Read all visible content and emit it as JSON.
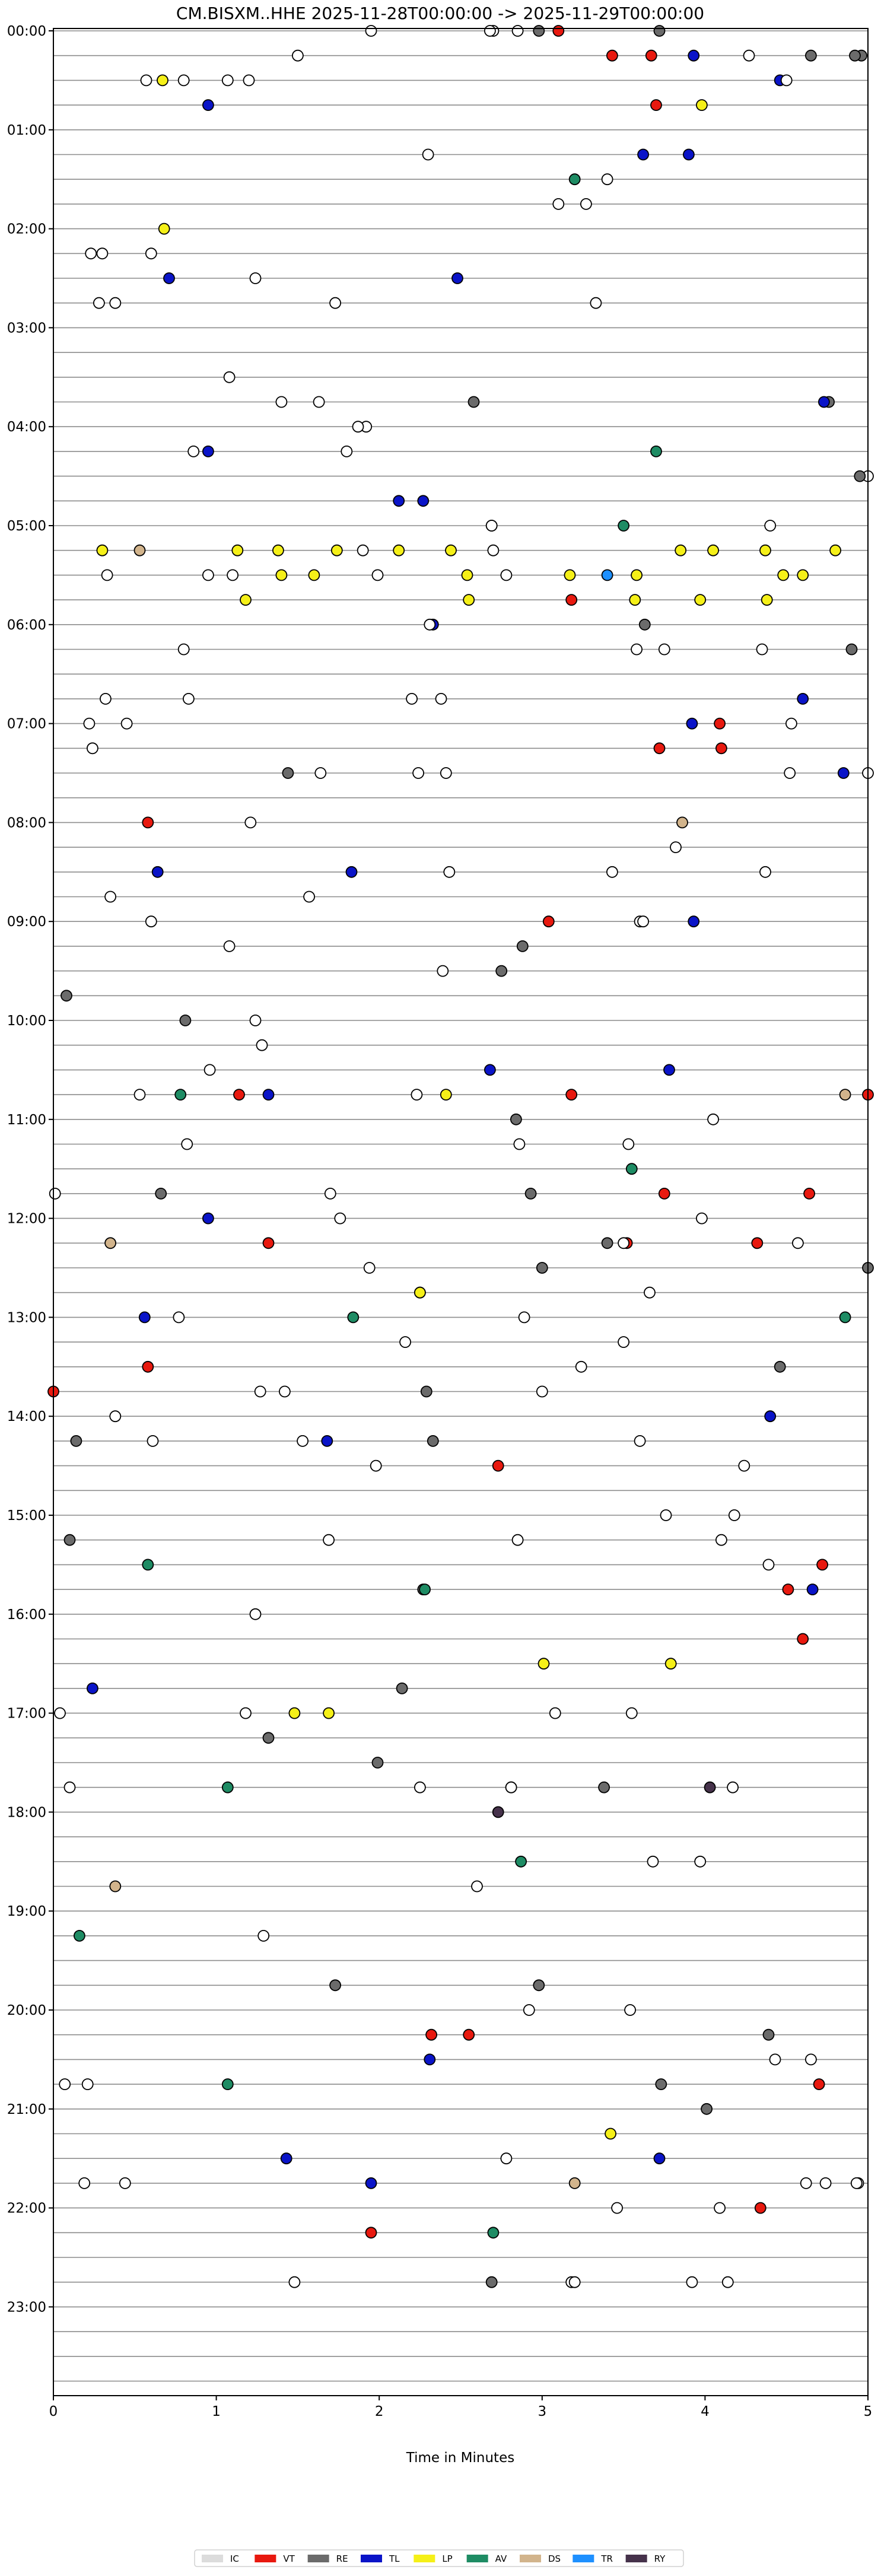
{
  "chart_data": {
    "type": "scatter",
    "title": "CM.BISXM..HHE  2025-11-28T00:00:00 -> 2025-11-29T00:00:00",
    "xlabel": "Time in Minutes",
    "ylabel": "",
    "xlim": [
      0,
      5
    ],
    "x_ticks": [
      0,
      1,
      2,
      3,
      4,
      5
    ],
    "x_tick_labels": [
      "0",
      "1",
      "2",
      "3",
      "4",
      "5"
    ],
    "rows_per_hour": 4,
    "row_minutes": 15,
    "y_tick_labels": [
      "00:00",
      "01:00",
      "02:00",
      "03:00",
      "04:00",
      "05:00",
      "06:00",
      "07:00",
      "08:00",
      "09:00",
      "10:00",
      "11:00",
      "12:00",
      "13:00",
      "14:00",
      "15:00",
      "16:00",
      "17:00",
      "18:00",
      "19:00",
      "20:00",
      "21:00",
      "22:00",
      "23:00"
    ],
    "grid": false,
    "legend_position": "bottom-center",
    "legend": [
      {
        "code": "IC",
        "color": "#dcdcdc"
      },
      {
        "code": "VT",
        "color": "#e8190f"
      },
      {
        "code": "RE",
        "color": "#6b6b6b"
      },
      {
        "code": "TL",
        "color": "#0a14c8"
      },
      {
        "code": "LP",
        "color": "#f5f018"
      },
      {
        "code": "AV",
        "color": "#1e8c64"
      },
      {
        "code": "DS",
        "color": "#d2b48c"
      },
      {
        "code": "TR",
        "color": "#1e90ff"
      },
      {
        "code": "RY",
        "color": "#46324b"
      }
    ],
    "point_colors": {
      "IC": "#ffffff",
      "VT": "#e8190f",
      "RE": "#6b6b6b",
      "TL": "#0a14c8",
      "LP": "#f5f018",
      "AV": "#1e8c64",
      "DS": "#d2b48c",
      "TR": "#1e90ff",
      "RY": "#46324b"
    },
    "points": [
      [
        0,
        1.95,
        "IC"
      ],
      [
        0,
        3.1,
        "VT"
      ],
      [
        0,
        3.72,
        "RE"
      ],
      [
        0,
        2.98,
        "RE"
      ],
      [
        0,
        2.85,
        "IC"
      ],
      [
        0,
        2.7,
        "IC"
      ],
      [
        0,
        2.68,
        "IC"
      ],
      [
        1,
        3.93,
        "TL"
      ],
      [
        1,
        3.67,
        "VT"
      ],
      [
        1,
        1.5,
        "IC"
      ],
      [
        1,
        3.43,
        "VT"
      ],
      [
        1,
        4.65,
        "RE"
      ],
      [
        1,
        4.96,
        "RE"
      ],
      [
        1,
        4.27,
        "IC"
      ],
      [
        1,
        4.92,
        "RE"
      ],
      [
        2,
        0.57,
        "IC"
      ],
      [
        2,
        1.2,
        "IC"
      ],
      [
        2,
        4.46,
        "TL"
      ],
      [
        2,
        0.8,
        "IC"
      ],
      [
        2,
        0.67,
        "LP"
      ],
      [
        2,
        1.07,
        "IC"
      ],
      [
        2,
        4.5,
        "IC"
      ],
      [
        3,
        3.98,
        "LP"
      ],
      [
        3,
        3.7,
        "VT"
      ],
      [
        3,
        0.95,
        "TL"
      ],
      [
        5,
        2.3,
        "IC"
      ],
      [
        5,
        3.9,
        "TL"
      ],
      [
        5,
        3.62,
        "TL"
      ],
      [
        6,
        3.4,
        "IC"
      ],
      [
        6,
        3.2,
        "AV"
      ],
      [
        7,
        3.1,
        "IC"
      ],
      [
        7,
        3.27,
        "IC"
      ],
      [
        8,
        0.68,
        "LP"
      ],
      [
        9,
        0.23,
        "IC"
      ],
      [
        9,
        0.3,
        "IC"
      ],
      [
        9,
        0.6,
        "IC"
      ],
      [
        10,
        2.48,
        "TL"
      ],
      [
        10,
        0.71,
        "TL"
      ],
      [
        10,
        1.24,
        "IC"
      ],
      [
        11,
        0.28,
        "IC"
      ],
      [
        11,
        1.73,
        "IC"
      ],
      [
        11,
        3.33,
        "IC"
      ],
      [
        11,
        0.38,
        "IC"
      ],
      [
        14,
        1.08,
        "IC"
      ],
      [
        15,
        1.4,
        "IC"
      ],
      [
        15,
        4.76,
        "RE"
      ],
      [
        15,
        2.58,
        "RE"
      ],
      [
        15,
        1.63,
        "IC"
      ],
      [
        15,
        4.73,
        "TL"
      ],
      [
        16,
        1.92,
        "IC"
      ],
      [
        16,
        1.87,
        "IC"
      ],
      [
        17,
        1.8,
        "IC"
      ],
      [
        17,
        0.95,
        "TL"
      ],
      [
        17,
        0.86,
        "IC"
      ],
      [
        17,
        3.7,
        "AV"
      ],
      [
        18,
        5.0,
        "IC"
      ],
      [
        18,
        4.95,
        "RE"
      ],
      [
        19,
        2.12,
        "TL"
      ],
      [
        19,
        2.27,
        "TL"
      ],
      [
        20,
        4.4,
        "IC"
      ],
      [
        20,
        2.69,
        "IC"
      ],
      [
        20,
        2.69,
        "IC"
      ],
      [
        20,
        3.5,
        "AV"
      ],
      [
        21,
        0.53,
        "DS"
      ],
      [
        21,
        0.3,
        "LP"
      ],
      [
        21,
        1.13,
        "LP"
      ],
      [
        21,
        1.38,
        "LP"
      ],
      [
        21,
        1.74,
        "LP"
      ],
      [
        21,
        1.9,
        "IC"
      ],
      [
        21,
        2.12,
        "LP"
      ],
      [
        21,
        2.44,
        "LP"
      ],
      [
        21,
        2.7,
        "IC"
      ],
      [
        21,
        3.85,
        "LP"
      ],
      [
        21,
        4.05,
        "LP"
      ],
      [
        21,
        4.37,
        "LP"
      ],
      [
        21,
        4.8,
        "LP"
      ],
      [
        22,
        0.95,
        "IC"
      ],
      [
        22,
        1.1,
        "IC"
      ],
      [
        22,
        1.4,
        "LP"
      ],
      [
        22,
        1.6,
        "LP"
      ],
      [
        22,
        1.99,
        "IC"
      ],
      [
        22,
        2.54,
        "LP"
      ],
      [
        22,
        2.78,
        "IC"
      ],
      [
        22,
        3.58,
        "LP"
      ],
      [
        22,
        4.6,
        "LP"
      ],
      [
        22,
        0.33,
        "IC"
      ],
      [
        22,
        3.17,
        "LP"
      ],
      [
        22,
        3.4,
        "TR"
      ],
      [
        22,
        4.48,
        "LP"
      ],
      [
        23,
        1.18,
        "LP"
      ],
      [
        23,
        3.18,
        "VT"
      ],
      [
        23,
        2.55,
        "LP"
      ],
      [
        23,
        3.57,
        "LP"
      ],
      [
        23,
        3.97,
        "LP"
      ],
      [
        23,
        4.38,
        "LP"
      ],
      [
        24,
        2.33,
        "TL"
      ],
      [
        24,
        2.31,
        "IC"
      ],
      [
        24,
        3.63,
        "RE"
      ],
      [
        25,
        3.75,
        "IC"
      ],
      [
        25,
        0.8,
        "IC"
      ],
      [
        25,
        3.58,
        "IC"
      ],
      [
        25,
        4.35,
        "IC"
      ],
      [
        25,
        4.9,
        "RE"
      ],
      [
        27,
        0.32,
        "IC"
      ],
      [
        27,
        0.83,
        "IC"
      ],
      [
        27,
        2.2,
        "IC"
      ],
      [
        27,
        2.38,
        "IC"
      ],
      [
        27,
        4.6,
        "TL"
      ],
      [
        28,
        0.22,
        "IC"
      ],
      [
        28,
        3.92,
        "TL"
      ],
      [
        28,
        4.53,
        "IC"
      ],
      [
        28,
        0.45,
        "IC"
      ],
      [
        28,
        4.09,
        "VT"
      ],
      [
        29,
        3.72,
        "VT"
      ],
      [
        29,
        4.1,
        "VT"
      ],
      [
        29,
        0.24,
        "IC"
      ],
      [
        30,
        1.64,
        "IC"
      ],
      [
        30,
        2.24,
        "IC"
      ],
      [
        30,
        2.41,
        "IC"
      ],
      [
        30,
        4.52,
        "IC"
      ],
      [
        30,
        1.44,
        "RE"
      ],
      [
        30,
        4.85,
        "TL"
      ],
      [
        30,
        5.0,
        "IC"
      ],
      [
        32,
        0.58,
        "VT"
      ],
      [
        32,
        1.21,
        "IC"
      ],
      [
        32,
        3.86,
        "DS"
      ],
      [
        33,
        3.82,
        "IC"
      ],
      [
        34,
        0.64,
        "TL"
      ],
      [
        34,
        2.43,
        "IC"
      ],
      [
        34,
        3.43,
        "IC"
      ],
      [
        34,
        4.37,
        "IC"
      ],
      [
        34,
        1.83,
        "TL"
      ],
      [
        35,
        0.35,
        "IC"
      ],
      [
        35,
        1.57,
        "IC"
      ],
      [
        36,
        3.04,
        "VT"
      ],
      [
        36,
        0.6,
        "IC"
      ],
      [
        36,
        3.6,
        "IC"
      ],
      [
        36,
        3.62,
        "IC"
      ],
      [
        36,
        3.93,
        "TL"
      ],
      [
        37,
        1.08,
        "IC"
      ],
      [
        37,
        2.88,
        "RE"
      ],
      [
        38,
        2.39,
        "IC"
      ],
      [
        38,
        2.75,
        "RE"
      ],
      [
        39,
        0.08,
        "RE"
      ],
      [
        40,
        1.24,
        "IC"
      ],
      [
        40,
        0.81,
        "RE"
      ],
      [
        41,
        1.28,
        "IC"
      ],
      [
        42,
        2.68,
        "TL"
      ],
      [
        42,
        3.78,
        "TL"
      ],
      [
        42,
        0.96,
        "IC"
      ],
      [
        43,
        0.53,
        "IC"
      ],
      [
        43,
        0.78,
        "AV"
      ],
      [
        43,
        1.14,
        "VT"
      ],
      [
        43,
        1.32,
        "TL"
      ],
      [
        43,
        2.23,
        "IC"
      ],
      [
        43,
        2.41,
        "LP"
      ],
      [
        43,
        3.18,
        "VT"
      ],
      [
        43,
        4.86,
        "DS"
      ],
      [
        43,
        5.0,
        "VT"
      ],
      [
        44,
        2.84,
        "RE"
      ],
      [
        44,
        4.05,
        "IC"
      ],
      [
        45,
        0.82,
        "IC"
      ],
      [
        45,
        2.86,
        "IC"
      ],
      [
        45,
        3.53,
        "IC"
      ],
      [
        46,
        3.55,
        "AV"
      ],
      [
        47,
        0.66,
        "RE"
      ],
      [
        47,
        2.93,
        "RE"
      ],
      [
        47,
        1.7,
        "IC"
      ],
      [
        47,
        3.75,
        "VT"
      ],
      [
        47,
        4.64,
        "VT"
      ],
      [
        47,
        0.01,
        "IC"
      ],
      [
        48,
        0.95,
        "TL"
      ],
      [
        48,
        1.76,
        "IC"
      ],
      [
        48,
        3.98,
        "IC"
      ],
      [
        49,
        0.35,
        "DS"
      ],
      [
        49,
        1.32,
        "VT"
      ],
      [
        49,
        4.32,
        "VT"
      ],
      [
        49,
        3.52,
        "VT"
      ],
      [
        49,
        3.5,
        "IC"
      ],
      [
        49,
        3.4,
        "RE"
      ],
      [
        49,
        4.57,
        "IC"
      ],
      [
        50,
        1.94,
        "IC"
      ],
      [
        50,
        3.0,
        "RE"
      ],
      [
        50,
        5.0,
        "RE"
      ],
      [
        51,
        2.25,
        "TL"
      ],
      [
        51,
        2.25,
        "LP"
      ],
      [
        51,
        3.66,
        "IC"
      ],
      [
        52,
        4.86,
        "AV"
      ],
      [
        52,
        0.77,
        "IC"
      ],
      [
        52,
        1.84,
        "AV"
      ],
      [
        52,
        2.89,
        "IC"
      ],
      [
        52,
        0.56,
        "TL"
      ],
      [
        53,
        2.16,
        "IC"
      ],
      [
        53,
        3.5,
        "IC"
      ],
      [
        54,
        0.58,
        "VT"
      ],
      [
        54,
        3.24,
        "IC"
      ],
      [
        54,
        4.46,
        "RE"
      ],
      [
        55,
        1.27,
        "IC"
      ],
      [
        55,
        1.42,
        "IC"
      ],
      [
        55,
        3.0,
        "IC"
      ],
      [
        55,
        2.29,
        "RE"
      ],
      [
        55,
        0.0,
        "VT"
      ],
      [
        56,
        0.38,
        "IC"
      ],
      [
        56,
        4.4,
        "TL"
      ],
      [
        57,
        0.61,
        "IC"
      ],
      [
        57,
        0.14,
        "RE"
      ],
      [
        57,
        1.68,
        "TL"
      ],
      [
        57,
        2.33,
        "RE"
      ],
      [
        57,
        1.53,
        "IC"
      ],
      [
        57,
        3.6,
        "IC"
      ],
      [
        58,
        1.98,
        "IC"
      ],
      [
        58,
        2.73,
        "VT"
      ],
      [
        58,
        4.24,
        "IC"
      ],
      [
        60,
        3.76,
        "IC"
      ],
      [
        60,
        4.18,
        "IC"
      ],
      [
        61,
        1.69,
        "IC"
      ],
      [
        61,
        2.85,
        "IC"
      ],
      [
        61,
        4.1,
        "IC"
      ],
      [
        61,
        0.1,
        "RE"
      ],
      [
        62,
        4.72,
        "VT"
      ],
      [
        62,
        4.39,
        "IC"
      ],
      [
        62,
        0.58,
        "AV"
      ],
      [
        63,
        2.27,
        "RE"
      ],
      [
        63,
        4.51,
        "VT"
      ],
      [
        63,
        4.66,
        "TL"
      ],
      [
        63,
        2.28,
        "AV"
      ],
      [
        64,
        1.24,
        "IC"
      ],
      [
        65,
        4.6,
        "VT"
      ],
      [
        66,
        3.01,
        "LP"
      ],
      [
        66,
        3.79,
        "LP"
      ],
      [
        67,
        0.24,
        "TL"
      ],
      [
        67,
        2.14,
        "RE"
      ],
      [
        68,
        0.04,
        "IC"
      ],
      [
        68,
        1.48,
        "LP"
      ],
      [
        68,
        1.69,
        "LP"
      ],
      [
        68,
        3.55,
        "IC"
      ],
      [
        68,
        1.18,
        "IC"
      ],
      [
        68,
        3.08,
        "IC"
      ],
      [
        69,
        1.32,
        "RE"
      ],
      [
        70,
        1.99,
        "RE"
      ],
      [
        71,
        0.1,
        "IC"
      ],
      [
        71,
        2.81,
        "IC"
      ],
      [
        71,
        2.81,
        "IC"
      ],
      [
        71,
        1.07,
        "AV"
      ],
      [
        71,
        4.17,
        "IC"
      ],
      [
        71,
        2.25,
        "IC"
      ],
      [
        71,
        3.38,
        "RE"
      ],
      [
        71,
        4.03,
        "RY"
      ],
      [
        72,
        2.73,
        "RY"
      ],
      [
        74,
        2.87,
        "AV"
      ],
      [
        74,
        3.68,
        "IC"
      ],
      [
        74,
        3.97,
        "IC"
      ],
      [
        75,
        0.38,
        "DS"
      ],
      [
        75,
        2.6,
        "IC"
      ],
      [
        77,
        1.29,
        "IC"
      ],
      [
        77,
        0.16,
        "AV"
      ],
      [
        79,
        1.73,
        "RE"
      ],
      [
        79,
        2.98,
        "RE"
      ],
      [
        80,
        2.92,
        "IC"
      ],
      [
        80,
        3.54,
        "IC"
      ],
      [
        81,
        2.32,
        "VT"
      ],
      [
        81,
        2.55,
        "VT"
      ],
      [
        81,
        4.39,
        "RE"
      ],
      [
        82,
        4.43,
        "IC"
      ],
      [
        82,
        4.65,
        "IC"
      ],
      [
        82,
        2.31,
        "TL"
      ],
      [
        83,
        0.07,
        "IC"
      ],
      [
        83,
        0.21,
        "IC"
      ],
      [
        83,
        1.07,
        "AV"
      ],
      [
        83,
        3.73,
        "RE"
      ],
      [
        83,
        4.7,
        "VT"
      ],
      [
        84,
        4.01,
        "RE"
      ],
      [
        85,
        3.42,
        "LP"
      ],
      [
        86,
        1.43,
        "TL"
      ],
      [
        86,
        2.78,
        "IC"
      ],
      [
        86,
        3.72,
        "TL"
      ],
      [
        87,
        1.95,
        "TL"
      ],
      [
        87,
        3.2,
        "DS"
      ],
      [
        87,
        4.74,
        "IC"
      ],
      [
        87,
        4.94,
        "IC"
      ],
      [
        87,
        0.19,
        "IC"
      ],
      [
        87,
        0.44,
        "IC"
      ],
      [
        87,
        4.62,
        "IC"
      ],
      [
        87,
        4.93,
        "IC"
      ],
      [
        88,
        3.46,
        "IC"
      ],
      [
        88,
        4.09,
        "IC"
      ],
      [
        88,
        4.34,
        "VT"
      ],
      [
        89,
        1.95,
        "VT"
      ],
      [
        89,
        2.7,
        "AV"
      ],
      [
        91,
        1.48,
        "IC"
      ],
      [
        91,
        2.69,
        "RE"
      ],
      [
        91,
        3.18,
        "IC"
      ],
      [
        91,
        3.92,
        "IC"
      ],
      [
        91,
        4.14,
        "IC"
      ],
      [
        91,
        3.2,
        "IC"
      ]
    ]
  }
}
